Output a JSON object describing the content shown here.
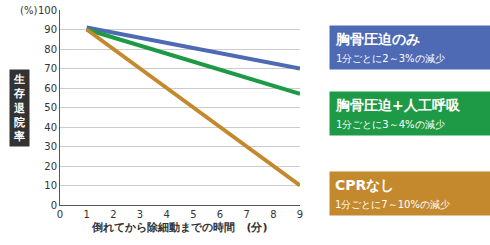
{
  "chart_data": {
    "type": "line",
    "xlabel": "倒れてから除細動までの時間　(分)",
    "ylabel": "生存退院率",
    "yunit": "(%)",
    "x": [
      1,
      9
    ],
    "series": [
      {
        "name": "胸骨圧迫のみ",
        "note": "1分ごとに2～3%の減少",
        "color": "#4e6ab5",
        "values": [
          91,
          70
        ]
      },
      {
        "name": "胸骨圧迫+人工呼吸",
        "note": "1分ごとに3～4%の減少",
        "color": "#1e9a46",
        "values": [
          90,
          57
        ]
      },
      {
        "name": "CPRなし",
        "note": "1分ごとに7～10%の減少",
        "color": "#c4892c",
        "values": [
          90,
          10
        ]
      }
    ],
    "xlim": [
      0,
      9
    ],
    "xticks": [
      0,
      1,
      2,
      3,
      4,
      5,
      6,
      7,
      8,
      9
    ],
    "ylim": [
      0,
      100
    ],
    "yticks": [
      0,
      10,
      20,
      30,
      40,
      50,
      60,
      70,
      80,
      90,
      100
    ],
    "grid": true
  }
}
